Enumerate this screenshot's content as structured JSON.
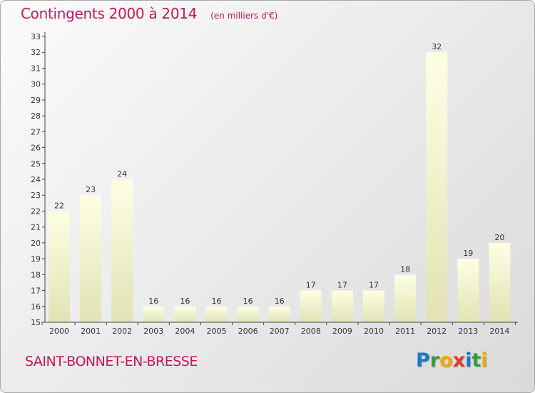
{
  "header": {
    "title": "Contingents 2000 à 2014",
    "subtitle": "(en milliers d'€)"
  },
  "footer": {
    "place": "SAINT-BONNET-EN-BRESSE",
    "brand": "Proxiti",
    "brand_letters": [
      {
        "ch": "P",
        "color": "#1f77c8"
      },
      {
        "ch": "r",
        "color": "#2e9e3a"
      },
      {
        "ch": "o",
        "color": "#f2a500"
      },
      {
        "ch": "x",
        "color": "#e23a2a"
      },
      {
        "ch": "i",
        "color": "#1f77c8"
      },
      {
        "ch": "t",
        "color": "#2e9e3a"
      },
      {
        "ch": "i",
        "color": "#f2a500"
      }
    ]
  },
  "colors": {
    "title": "#c2185b",
    "bar_top": "#fdffe4",
    "bar_bottom": "#e2e2b4",
    "axis": "#444444"
  },
  "chart_data": {
    "type": "bar",
    "categories": [
      "2000",
      "2001",
      "2002",
      "2003",
      "2004",
      "2005",
      "2006",
      "2007",
      "2008",
      "2009",
      "2010",
      "2011",
      "2012",
      "2013",
      "2014"
    ],
    "values": [
      22,
      23,
      24,
      16,
      16,
      16,
      16,
      16,
      17,
      17,
      17,
      18,
      32,
      19,
      20
    ],
    "ylim": [
      15,
      33
    ],
    "yticks": [
      15,
      16,
      17,
      18,
      19,
      20,
      21,
      22,
      23,
      24,
      25,
      26,
      27,
      28,
      29,
      30,
      31,
      32,
      33
    ],
    "grid": false,
    "legend": "none"
  }
}
